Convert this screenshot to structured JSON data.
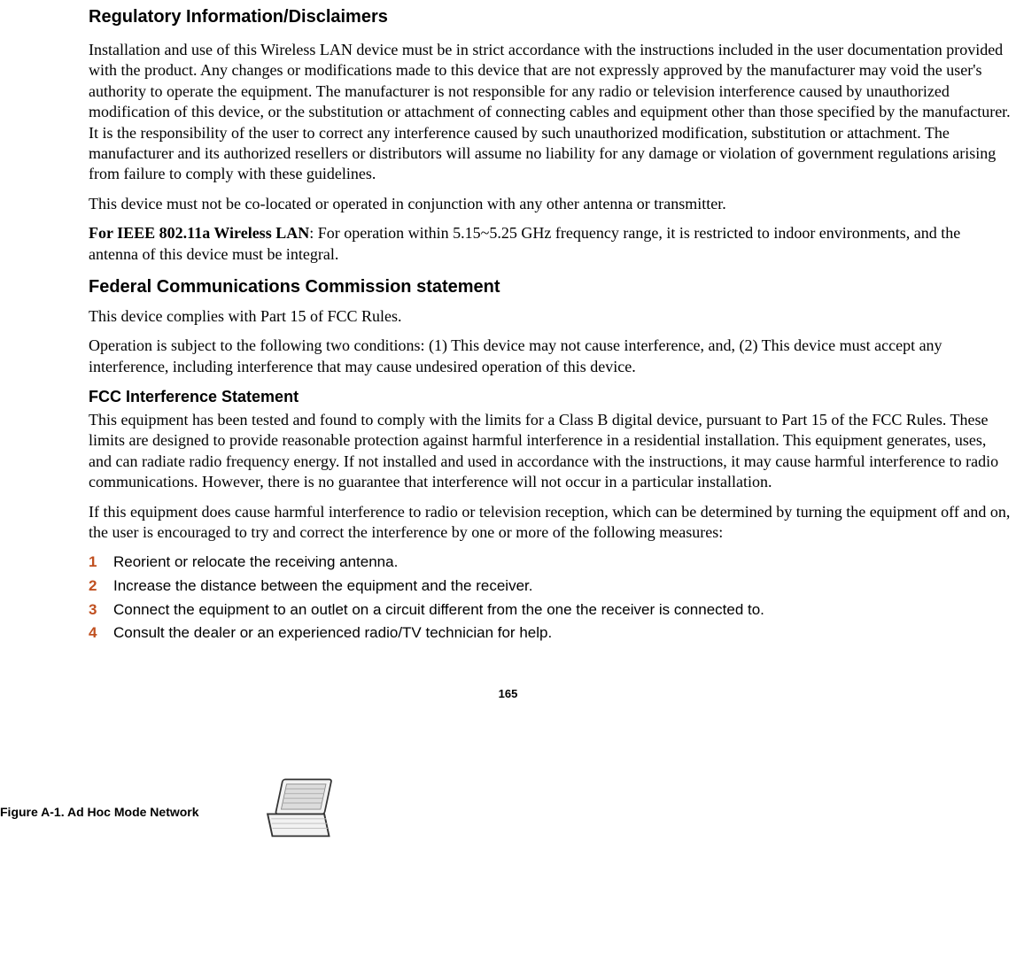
{
  "headings": {
    "h1": "Regulatory Information/Disclaimers",
    "h2": "Federal Communications Commission statement",
    "h3": "FCC Interference Statement"
  },
  "paragraphs": {
    "p1": "Installation and use of this Wireless LAN device must be in strict accordance with the instructions included in the user documentation provided with the product. Any changes or modifications made to this device that are not expressly approved by the manufacturer may void the user's authority to operate the equipment. The manufacturer is not responsible for any radio or television interference caused by unauthorized modification of this device, or the substitution or attachment of connecting cables and equipment other than those specified by the manufacturer. It is the responsibility of the user to correct any interference caused by such unauthorized modification, substitution or attachment. The manufacturer and its authorized resellers or distributors will assume no liability for any damage or violation of government regulations arising from failure to comply with these guidelines.",
    "p2": "This device must not be co-located or operated in conjunction with any other antenna or transmitter.",
    "p3_bold": "For IEEE 802.11a Wireless LAN",
    "p3_rest": ": For operation within 5.15~5.25 GHz frequency range, it is restricted to indoor environments, and the antenna of this device must be integral.",
    "p4": "This device complies with Part 15 of FCC Rules.",
    "p5": "Operation is subject to the following two conditions: (1) This device may not cause interference, and, (2) This device must accept any interference, including interference that may cause undesired operation of this device.",
    "p6": "This equipment has been tested and found to comply with the limits for a Class B digital device, pursuant to Part 15 of the FCC Rules. These limits are designed to provide reasonable protection against harmful interference in a residential installation. This equipment generates, uses, and can radiate radio frequency energy. If not installed and used in accordance with the instructions, it may cause harmful interference to radio communications. However, there is no guarantee that interference will not occur in a particular installation.",
    "p7": "If this equipment does cause harmful interference to radio or television reception, which can be determined by turning the equipment off and on, the user is encouraged to try and correct the interference by one or more of the following measures:"
  },
  "steps": [
    {
      "n": "1",
      "t": "Reorient or relocate the receiving antenna."
    },
    {
      "n": "2",
      "t": "Increase the distance between the equipment and the receiver."
    },
    {
      "n": "3",
      "t": "Connect the equipment to an outlet on a circuit different from the one the receiver is connected to."
    },
    {
      "n": "4",
      "t": "Consult the dealer or an experienced radio/TV technician for help."
    }
  ],
  "page_number": "165",
  "figure_caption": "Figure A-1. Ad Hoc Mode Network",
  "colors": {
    "step_number": "#c05020",
    "text": "#000000",
    "background": "#ffffff"
  },
  "fonts": {
    "serif": "Times New Roman",
    "sans": "Arial",
    "body_size_pt": 14,
    "heading_size_pt": 15,
    "subheading_size_pt": 14
  }
}
